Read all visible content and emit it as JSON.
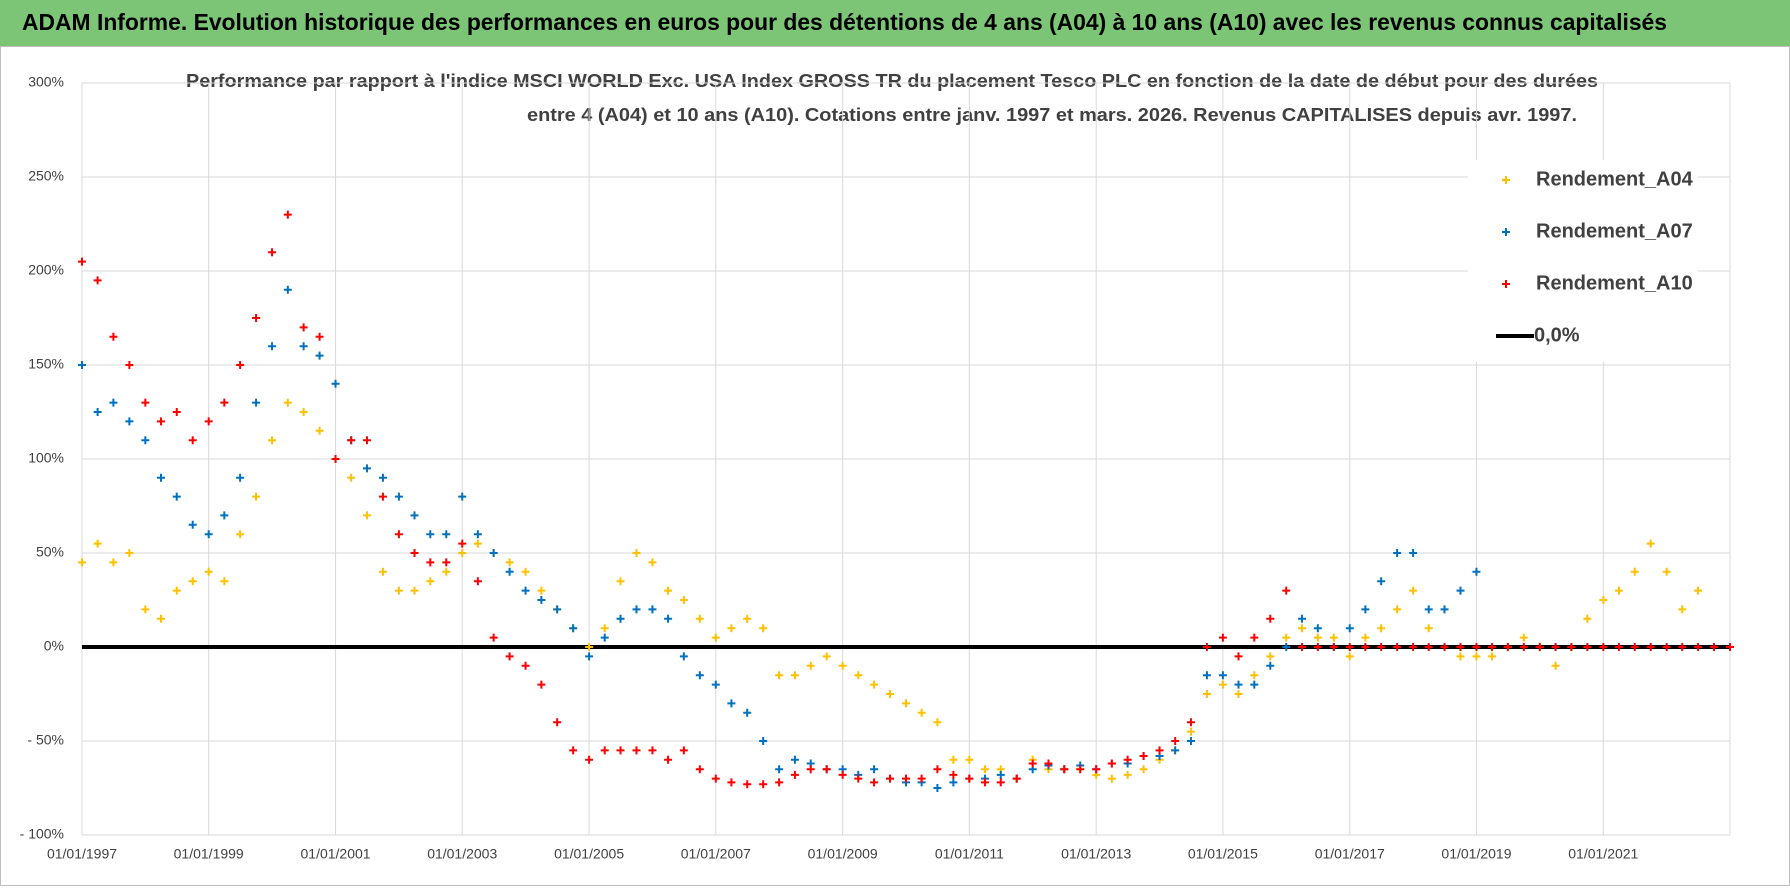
{
  "chart_data": {
    "type": "scatter",
    "header": "ADAM Informe. Evolution historique des performances en euros pour des détentions de 4 ans (A04) à 10 ans (A10) avec les revenus connus capitalisés",
    "title": [
      "Performance par rapport à l'indice MSCI WORLD Exc. USA Index GROSS TR  du placement Tesco PLC en fonction de la date de début pour des durées",
      "entre 4 (A04) et 10 ans (A10).  Cotations entre janv. 1997 et mars. 2026. Revenus CAPITALISES depuis avr. 1997."
    ],
    "x": [
      "1997-01-01",
      "1997-04-01",
      "1997-07-01",
      "1997-10-01",
      "1998-01-01",
      "1998-04-01",
      "1998-07-01",
      "1998-10-01",
      "1999-01-01",
      "1999-04-01",
      "1999-07-01",
      "1999-10-01",
      "2000-01-01",
      "2000-04-01",
      "2000-07-01",
      "2000-10-01",
      "2001-01-01",
      "2001-04-01",
      "2001-07-01",
      "2001-10-01",
      "2002-01-01",
      "2002-04-01",
      "2002-07-01",
      "2002-10-01",
      "2003-01-01",
      "2003-04-01",
      "2003-07-01",
      "2003-10-01",
      "2004-01-01",
      "2004-04-01",
      "2004-07-01",
      "2004-10-01",
      "2005-01-01",
      "2005-04-01",
      "2005-07-01",
      "2005-10-01",
      "2006-01-01",
      "2006-04-01",
      "2006-07-01",
      "2006-10-01",
      "2007-01-01",
      "2007-04-01",
      "2007-07-01",
      "2007-10-01",
      "2008-01-01",
      "2008-04-01",
      "2008-07-01",
      "2008-10-01",
      "2009-01-01",
      "2009-04-01",
      "2009-07-01",
      "2009-10-01",
      "2010-01-01",
      "2010-04-01",
      "2010-07-01",
      "2010-10-01",
      "2011-01-01",
      "2011-04-01",
      "2011-07-01",
      "2011-10-01",
      "2012-01-01",
      "2012-04-01",
      "2012-07-01",
      "2012-10-01",
      "2013-01-01",
      "2013-04-01",
      "2013-07-01",
      "2013-10-01",
      "2014-01-01",
      "2014-04-01",
      "2014-07-01",
      "2014-10-01",
      "2015-01-01",
      "2015-04-01",
      "2015-07-01",
      "2015-10-01",
      "2016-01-01",
      "2016-04-01",
      "2016-07-01",
      "2016-10-01",
      "2017-01-01",
      "2017-04-01",
      "2017-07-01",
      "2017-10-01",
      "2018-01-01",
      "2018-04-01",
      "2018-07-01",
      "2018-10-01",
      "2019-01-01",
      "2019-04-01",
      "2019-07-01",
      "2019-10-01",
      "2020-01-01",
      "2020-04-01",
      "2020-07-01",
      "2020-10-01",
      "2021-01-01",
      "2021-04-01",
      "2021-07-01",
      "2021-10-01",
      "2022-01-01",
      "2022-04-01",
      "2022-07-01",
      "2022-10-01",
      "2023-01-01"
    ],
    "series": [
      {
        "name": "Rendement_A04",
        "color": "#ffc000",
        "style": "marker",
        "values": [
          45,
          55,
          45,
          50,
          20,
          15,
          30,
          35,
          40,
          35,
          60,
          80,
          110,
          130,
          125,
          115,
          100,
          90,
          70,
          40,
          30,
          30,
          35,
          40,
          50,
          55,
          50,
          45,
          40,
          30,
          20,
          10,
          0,
          10,
          35,
          50,
          45,
          30,
          25,
          15,
          5,
          10,
          15,
          10,
          -15,
          -15,
          -10,
          -5,
          -10,
          -15,
          -20,
          -25,
          -30,
          -35,
          -40,
          -60,
          -60,
          -65,
          -65,
          -70,
          -60,
          -65,
          -65,
          -65,
          -68,
          -70,
          -68,
          -65,
          -60,
          -55,
          -45,
          -25,
          -20,
          -25,
          -15,
          -5,
          5,
          10,
          5,
          5,
          -5,
          5,
          10,
          20,
          30,
          10,
          0,
          -5,
          -5,
          -5,
          0,
          5,
          0,
          -10,
          0,
          15,
          25,
          30,
          40,
          55,
          40,
          20,
          30,
          null,
          null
        ]
      },
      {
        "name": "Rendement_A07",
        "color": "#0070c0",
        "style": "marker",
        "values": [
          150,
          125,
          130,
          120,
          110,
          90,
          80,
          65,
          60,
          70,
          90,
          130,
          160,
          190,
          160,
          155,
          140,
          110,
          95,
          90,
          80,
          70,
          60,
          60,
          80,
          60,
          50,
          40,
          30,
          25,
          20,
          10,
          -5,
          5,
          15,
          20,
          20,
          15,
          -5,
          -15,
          -20,
          -30,
          -35,
          -50,
          -65,
          -60,
          -62,
          -65,
          -65,
          -68,
          -65,
          -70,
          -72,
          -72,
          -75,
          -72,
          -70,
          -70,
          -68,
          -70,
          -65,
          -63,
          -65,
          -63,
          -65,
          -62,
          -62,
          -58,
          -58,
          -55,
          -50,
          -15,
          -15,
          -20,
          -20,
          -10,
          0,
          15,
          10,
          0,
          10,
          20,
          35,
          50,
          50,
          20,
          20,
          30,
          40,
          null,
          null,
          null,
          null,
          null,
          null,
          null,
          null,
          null,
          null,
          null,
          null,
          null,
          null,
          null,
          null
        ]
      },
      {
        "name": "Rendement_A10",
        "color": "#ff0000",
        "style": "marker",
        "values": [
          205,
          195,
          165,
          150,
          130,
          120,
          125,
          110,
          120,
          130,
          150,
          175,
          210,
          230,
          170,
          165,
          100,
          110,
          110,
          80,
          60,
          50,
          45,
          45,
          55,
          35,
          5,
          -5,
          -10,
          -20,
          -40,
          -55,
          -60,
          -55,
          -55,
          -55,
          -55,
          -60,
          -55,
          -65,
          -70,
          -72,
          -73,
          -73,
          -72,
          -68,
          -65,
          -65,
          -68,
          -70,
          -72,
          -70,
          -70,
          -70,
          -65,
          -68,
          -70,
          -72,
          -72,
          -70,
          -62,
          -62,
          -65,
          -65,
          -65,
          -62,
          -60,
          -58,
          -55,
          -50,
          -40,
          0,
          5,
          -5,
          5,
          15,
          30,
          0,
          0,
          0,
          0,
          0,
          0,
          0,
          0,
          0,
          0,
          0,
          0,
          0,
          0,
          0,
          0,
          0,
          0,
          0,
          0,
          0,
          0,
          0,
          0,
          0,
          0,
          0,
          0
        ]
      },
      {
        "name": "0,0%",
        "color": "#000000",
        "style": "line",
        "x": [
          "1997-01-01",
          "2023-01-01"
        ],
        "values": [
          0,
          0
        ]
      }
    ],
    "xlim": [
      "1997-01-01",
      "2023-01-01"
    ],
    "xticks": [
      {
        "value": "1997-01-01",
        "label": "01/01/1997"
      },
      {
        "value": "1999-01-01",
        "label": "01/01/1999"
      },
      {
        "value": "2001-01-01",
        "label": "01/01/2001"
      },
      {
        "value": "2003-01-01",
        "label": "01/01/2003"
      },
      {
        "value": "2005-01-01",
        "label": "01/01/2005"
      },
      {
        "value": "2007-01-01",
        "label": "01/01/2007"
      },
      {
        "value": "2009-01-01",
        "label": "01/01/2009"
      },
      {
        "value": "2011-01-01",
        "label": "01/01/2011"
      },
      {
        "value": "2013-01-01",
        "label": "01/01/2013"
      },
      {
        "value": "2015-01-01",
        "label": "01/01/2015"
      },
      {
        "value": "2017-01-01",
        "label": "01/01/2017"
      },
      {
        "value": "2019-01-01",
        "label": "01/01/2019"
      },
      {
        "value": "2021-01-01",
        "label": "01/01/2021"
      }
    ],
    "ylim": [
      -100,
      300
    ],
    "yticks": [
      {
        "value": -100,
        "label": "- 100%"
      },
      {
        "value": -50,
        "label": "- 50%"
      },
      {
        "value": 0,
        "label": "0%"
      },
      {
        "value": 50,
        "label": "50%"
      },
      {
        "value": 100,
        "label": "100%"
      },
      {
        "value": 150,
        "label": "150%"
      },
      {
        "value": 200,
        "label": "200%"
      },
      {
        "value": 250,
        "label": "250%"
      },
      {
        "value": 300,
        "label": "300%"
      }
    ],
    "grid": true,
    "legend": "upper right"
  }
}
